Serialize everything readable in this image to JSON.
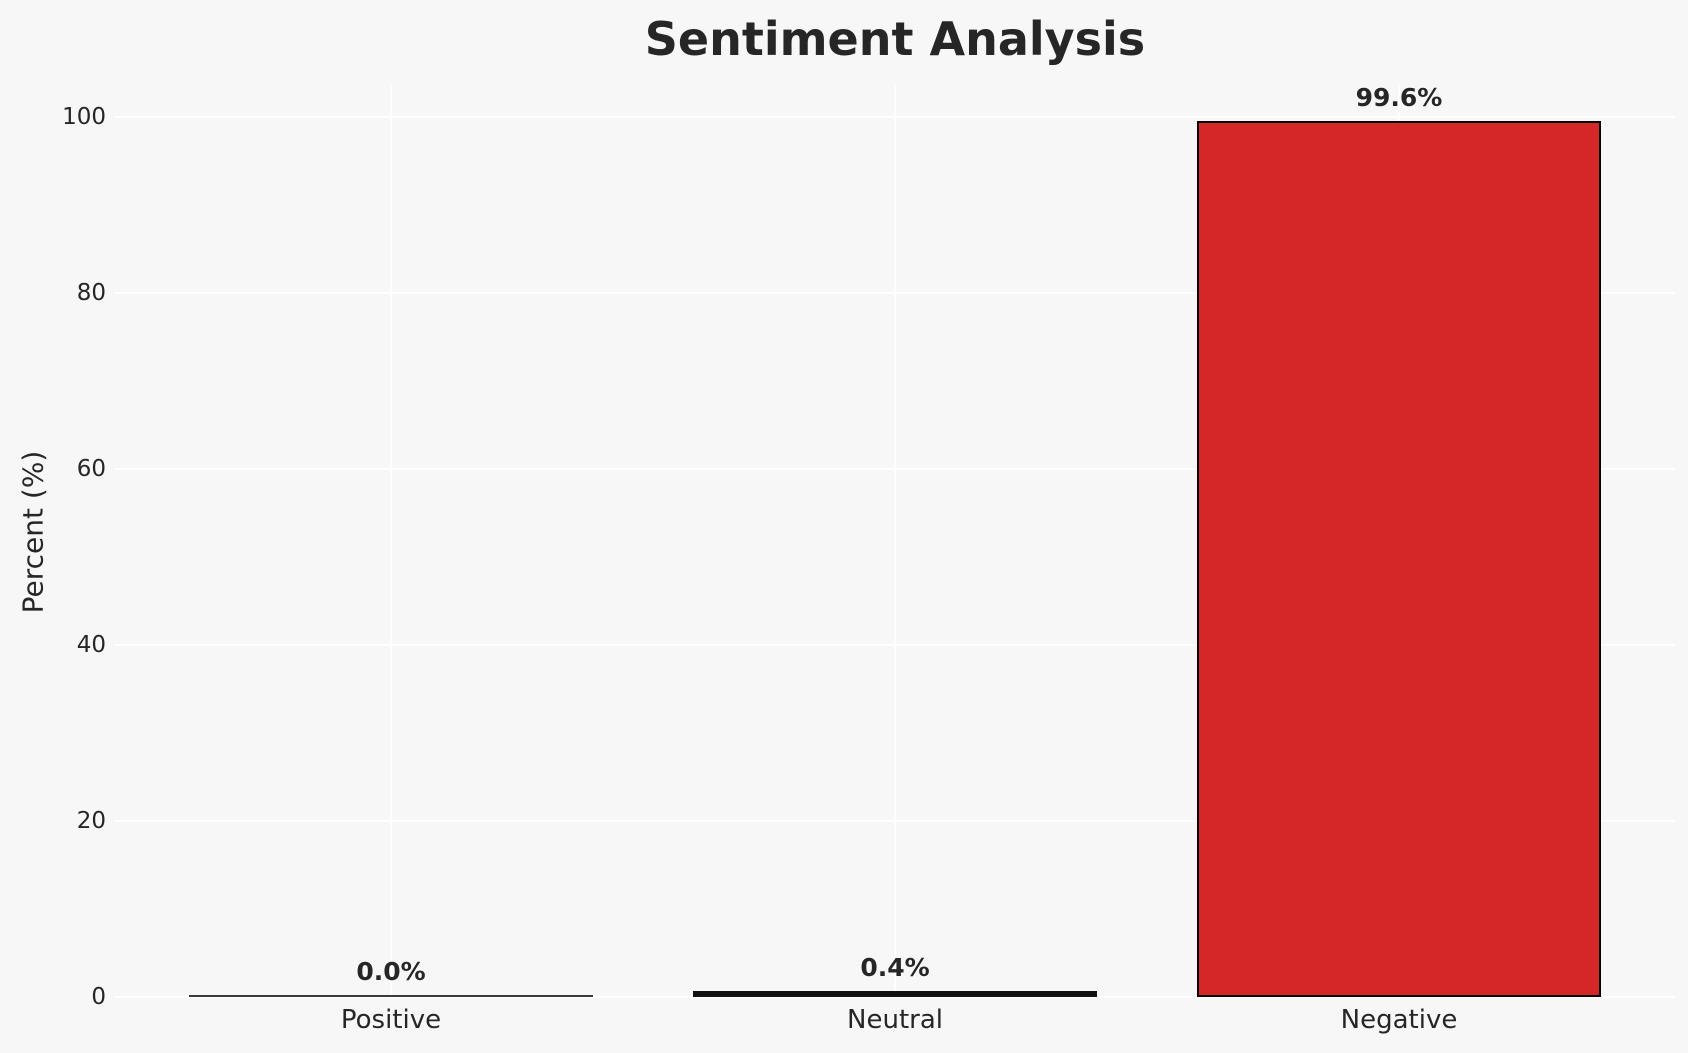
{
  "figure": {
    "background_color": "#f7f7f7",
    "grid_color": "#ffffff",
    "text_color": "#262626"
  },
  "chart_data": {
    "type": "bar",
    "title": "Sentiment Analysis",
    "xlabel": "",
    "ylabel": "Percent (%)",
    "categories": [
      "Positive",
      "Neutral",
      "Negative"
    ],
    "values": [
      0.0,
      0.4,
      99.6
    ],
    "value_labels": [
      "0.0%",
      "0.4%",
      "99.6%"
    ],
    "bar_fill_colors": [
      "#3a3a3a",
      "#111111",
      "#d62728"
    ],
    "bar_edge_color": "#000000",
    "yticks": [
      0,
      20,
      40,
      60,
      80,
      100
    ],
    "ytick_labels": [
      "0",
      "20",
      "40",
      "60",
      "80",
      "100"
    ],
    "ylim": [
      0,
      100
    ],
    "grid": true,
    "grid_lines": "horizontal at each ytick and vertical at each category center, white on light-gray background",
    "legend": false
  }
}
